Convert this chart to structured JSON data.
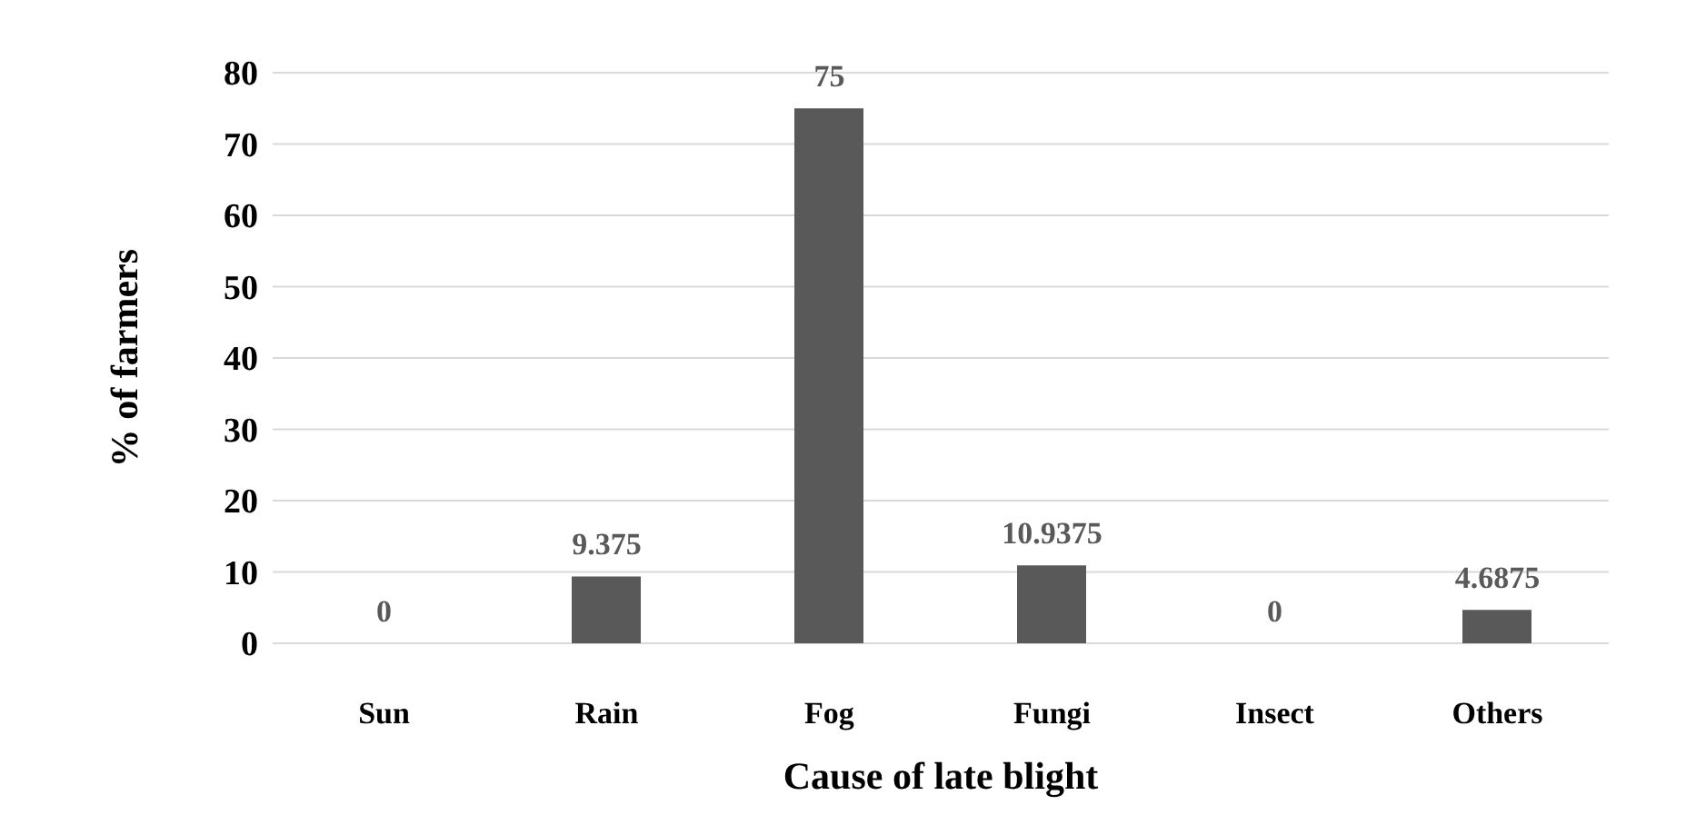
{
  "chart_data": {
    "type": "bar",
    "xlabel": "Cause of late blight",
    "ylabel": "% of farmers",
    "categories": [
      "Sun",
      "Rain",
      "Fog",
      "Fungi",
      "Insect",
      "Others"
    ],
    "values": [
      0,
      9.375,
      75,
      10.9375,
      0,
      4.6875
    ],
    "color": "#595959",
    "ylim": [
      0,
      80
    ],
    "yticks": [
      0,
      10,
      20,
      30,
      40,
      50,
      60,
      70,
      80
    ],
    "grid": "y",
    "data_labels": true,
    "legend": false
  }
}
